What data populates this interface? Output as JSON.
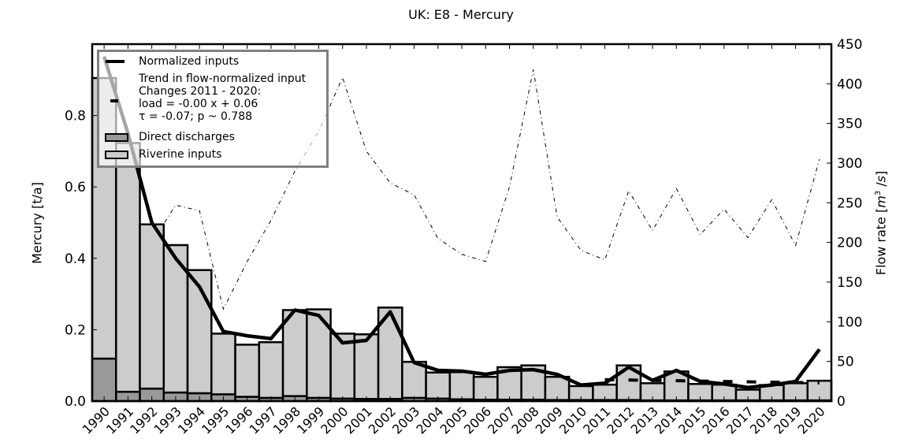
{
  "chart_data": {
    "type": "bar",
    "title": "UK: E8 - Mercury",
    "xlabel": "",
    "ylabel": "Mercury [t/a]",
    "ylabel_right": "Flow rate [m³/s]",
    "ylim": [
      0,
      1.0
    ],
    "ylim_right": [
      0,
      450
    ],
    "yticks": [
      "0.0",
      "0.2",
      "0.4",
      "0.6",
      "0.8"
    ],
    "yticks_right": [
      "0",
      "50",
      "100",
      "150",
      "200",
      "250",
      "300",
      "350",
      "400",
      "450"
    ],
    "categories": [
      "1990",
      "1991",
      "1992",
      "1993",
      "1994",
      "1995",
      "1996",
      "1997",
      "1998",
      "1999",
      "2000",
      "2001",
      "2002",
      "2003",
      "2004",
      "2005",
      "2006",
      "2007",
      "2008",
      "2009",
      "2010",
      "2011",
      "2012",
      "2013",
      "2014",
      "2015",
      "2016",
      "2017",
      "2018",
      "2019",
      "2020"
    ],
    "series": [
      {
        "name": "Direct discharges",
        "type": "bar",
        "stacked": true,
        "color": "#999999",
        "values": [
          0.119,
          0.026,
          0.035,
          0.024,
          0.022,
          0.019,
          0.012,
          0.009,
          0.014,
          0.009,
          0.007,
          0.006,
          0.006,
          0.009,
          0.007,
          0.005,
          0.004,
          0.004,
          0.004,
          0.003,
          0.003,
          0.003,
          0.003,
          0.002,
          0.002,
          0.002,
          0.002,
          0.002,
          0.002,
          0.002,
          0.002
        ]
      },
      {
        "name": "Riverine inputs",
        "type": "bar",
        "stacked": true,
        "color": "#cccccc",
        "values": [
          0.786,
          0.697,
          0.46,
          0.413,
          0.345,
          0.17,
          0.146,
          0.156,
          0.241,
          0.248,
          0.182,
          0.181,
          0.256,
          0.101,
          0.073,
          0.076,
          0.064,
          0.091,
          0.096,
          0.065,
          0.039,
          0.043,
          0.097,
          0.048,
          0.081,
          0.046,
          0.044,
          0.03,
          0.043,
          0.048,
          0.055
        ]
      },
      {
        "name": "Normalized inputs",
        "type": "line",
        "color": "#000000",
        "values": [
          0.965,
          0.75,
          0.5,
          0.4,
          0.32,
          0.195,
          0.183,
          0.175,
          0.255,
          0.24,
          0.163,
          0.17,
          0.25,
          0.108,
          0.086,
          0.084,
          0.075,
          0.086,
          0.088,
          0.075,
          0.045,
          0.05,
          0.095,
          0.058,
          0.086,
          0.055,
          0.048,
          0.038,
          0.045,
          0.055,
          0.145
        ]
      },
      {
        "name": "Trend in flow-normalized input",
        "type": "dashed-line",
        "color": "#000000",
        "x_range": [
          "2011",
          "2020"
        ],
        "values": [
          0.06,
          0.059,
          0.058,
          0.057,
          0.056,
          0.055,
          0.054,
          0.053,
          0.052,
          0.051
        ]
      },
      {
        "name": "Flow rate",
        "type": "line",
        "axis": "right",
        "style": "dash-dot",
        "color": "#000000",
        "values": [
          170,
          183,
          200,
          247,
          240,
          116,
          176,
          228,
          290,
          340,
          408,
          315,
          275,
          260,
          205,
          185,
          176,
          270,
          418,
          232,
          190,
          178,
          265,
          215,
          268,
          210,
          242,
          206,
          254,
          196,
          305
        ]
      }
    ],
    "legend": {
      "position": "upper left",
      "entries": [
        "Normalized inputs",
        "Trend in flow-normalized input",
        "Direct discharges",
        "Riverine inputs"
      ],
      "trend_text": [
        "Trend in flow-normalized input",
        "Changes 2011 - 2020:",
        "load = -0.00 x +  0.06",
        "τ = -0.07; p ~ 0.788"
      ]
    },
    "grid": false
  }
}
